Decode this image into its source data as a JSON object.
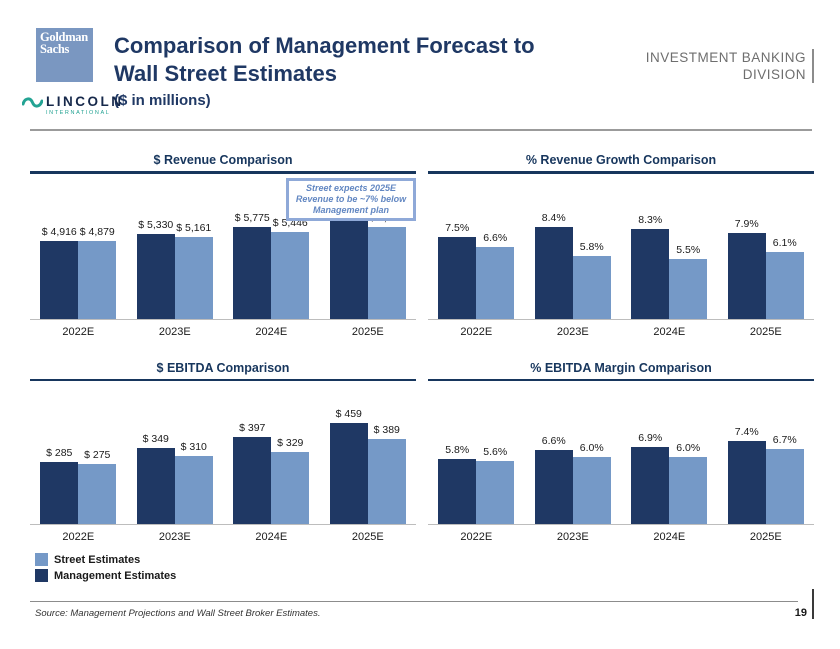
{
  "header": {
    "goldman_logo": {
      "line1": "Goldman",
      "line2": "Sachs"
    },
    "lincoln_logo": {
      "name": "LINCOLN",
      "subtitle": "INTERNATIONAL"
    },
    "title_line1": "Comparison of Management Forecast to",
    "title_line2": "Wall Street Estimates",
    "subtitle": "($ in millions)",
    "division_line1": "INVESTMENT BANKING",
    "division_line2": "DIVISION"
  },
  "annotation": {
    "line1": "Street expects 2025E",
    "line2": "Revenue to be ~7% below",
    "line3": "Management plan"
  },
  "legend": {
    "street": "Street Estimates",
    "management": "Management Estimates"
  },
  "footer": {
    "source": "Source: Management Projections and Wall Street Broker Estimates.",
    "page_number": "19"
  },
  "colors": {
    "management_bar": "#1F3864",
    "street_bar": "#7599C7",
    "title_navy": "#1F3864",
    "chart_accent": "#17365D",
    "lincoln_teal": "#23A393",
    "division_gray": "#6E6E6E"
  },
  "chart_data": [
    {
      "id": "revenue-comparison",
      "type": "bar",
      "title": "$ Revenue Comparison",
      "categories": [
        "2022E",
        "2023E",
        "2024E",
        "2025E"
      ],
      "series": [
        {
          "name": "Management Estimates",
          "values": [
            4916,
            5330,
            5775,
            6233
          ]
        },
        {
          "name": "Street Estimates",
          "values": [
            4879,
            5161,
            5446,
            5777
          ]
        }
      ],
      "value_format": "currency",
      "ylim": [
        0,
        6500
      ],
      "grid": false,
      "annotation": "Street expects 2025E Revenue to be ~7% below Management plan"
    },
    {
      "id": "revenue-growth-comparison",
      "type": "bar",
      "title": "% Revenue Growth Comparison",
      "categories": [
        "2022E",
        "2023E",
        "2024E",
        "2025E"
      ],
      "series": [
        {
          "name": "Management Estimates",
          "values": [
            7.5,
            8.4,
            8.3,
            7.9
          ]
        },
        {
          "name": "Street Estimates",
          "values": [
            6.6,
            5.8,
            5.5,
            6.1
          ]
        }
      ],
      "value_format": "percent",
      "ylim": [
        0,
        9.5
      ],
      "grid": false
    },
    {
      "id": "ebitda-comparison",
      "type": "bar",
      "title": "$ EBITDA Comparison",
      "categories": [
        "2022E",
        "2023E",
        "2024E",
        "2025E"
      ],
      "series": [
        {
          "name": "Management Estimates",
          "values": [
            285,
            349,
            397,
            459
          ]
        },
        {
          "name": "Street Estimates",
          "values": [
            275,
            310,
            329,
            389
          ]
        }
      ],
      "value_format": "currency",
      "ylim": [
        0,
        470
      ],
      "grid": false
    },
    {
      "id": "ebitda-margin-comparison",
      "type": "bar",
      "title": "% EBITDA Margin Comparison",
      "categories": [
        "2022E",
        "2023E",
        "2024E",
        "2025E"
      ],
      "series": [
        {
          "name": "Management Estimates",
          "values": [
            5.8,
            6.6,
            6.9,
            7.4
          ]
        },
        {
          "name": "Street Estimates",
          "values": [
            5.6,
            6.0,
            6.0,
            6.7
          ]
        }
      ],
      "value_format": "percent",
      "ylim": [
        0,
        9.2
      ],
      "grid": false
    }
  ]
}
